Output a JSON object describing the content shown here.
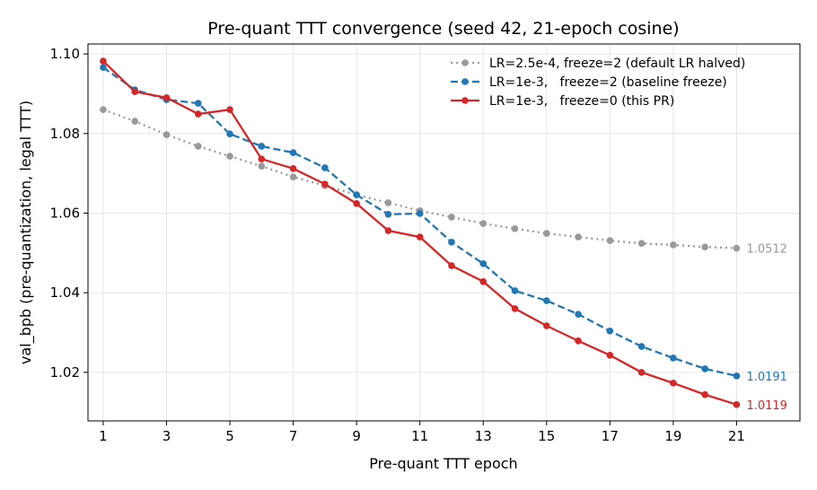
{
  "chart_data": {
    "type": "line",
    "title": "Pre-quant TTT convergence (seed 42, 21-epoch cosine)",
    "xlabel": "Pre-quant TTT epoch",
    "ylabel": "val_bpb (pre-quantization, legal TTT)",
    "xlim": [
      0.52,
      23.0
    ],
    "ylim": [
      1.0078,
      1.1025
    ],
    "xticks": [
      1,
      3,
      5,
      7,
      9,
      11,
      13,
      15,
      17,
      19,
      21
    ],
    "yticks": [
      1.02,
      1.04,
      1.06,
      1.08,
      1.1
    ],
    "ytick_labels": [
      "1.02",
      "1.04",
      "1.06",
      "1.08",
      "1.10"
    ],
    "grid": true,
    "legend_position": "top-right",
    "x": [
      1,
      2,
      3,
      4,
      5,
      6,
      7,
      8,
      9,
      10,
      11,
      12,
      13,
      14,
      15,
      16,
      17,
      18,
      19,
      20,
      21
    ],
    "series": [
      {
        "name": "LR=2.5e-4, freeze=2 (default LR halved)",
        "color": "#999999",
        "style": "dotted",
        "values": [
          1.086,
          1.0831,
          1.0797,
          1.0768,
          1.0743,
          1.0718,
          1.0691,
          1.0669,
          1.0646,
          1.0626,
          1.0606,
          1.059,
          1.0574,
          1.0561,
          1.0549,
          1.054,
          1.0531,
          1.0524,
          1.052,
          1.0515,
          1.0512
        ],
        "end_label": "1.0512"
      },
      {
        "name": "LR=1e-3,   freeze=2 (baseline freeze)",
        "color": "#1f77b4",
        "style": "dashed",
        "values": [
          1.0966,
          1.091,
          1.0885,
          1.0876,
          1.0799,
          1.0768,
          1.0752,
          1.0714,
          1.0646,
          1.0597,
          1.0599,
          1.0527,
          1.0473,
          1.0405,
          1.038,
          1.0346,
          1.0304,
          1.0265,
          1.0236,
          1.0209,
          1.0191
        ],
        "end_label": "1.0191"
      },
      {
        "name": "LR=1e-3,   freeze=0 (this PR)",
        "color": "#d62728",
        "style": "solid",
        "values": [
          1.0982,
          1.0905,
          1.089,
          1.0849,
          1.086,
          1.0736,
          1.0712,
          1.0673,
          1.0624,
          1.0556,
          1.054,
          1.0468,
          1.0428,
          1.036,
          1.0317,
          1.0279,
          1.0243,
          1.02,
          1.0173,
          1.0144,
          1.0119
        ],
        "end_label": "1.0119"
      }
    ]
  }
}
